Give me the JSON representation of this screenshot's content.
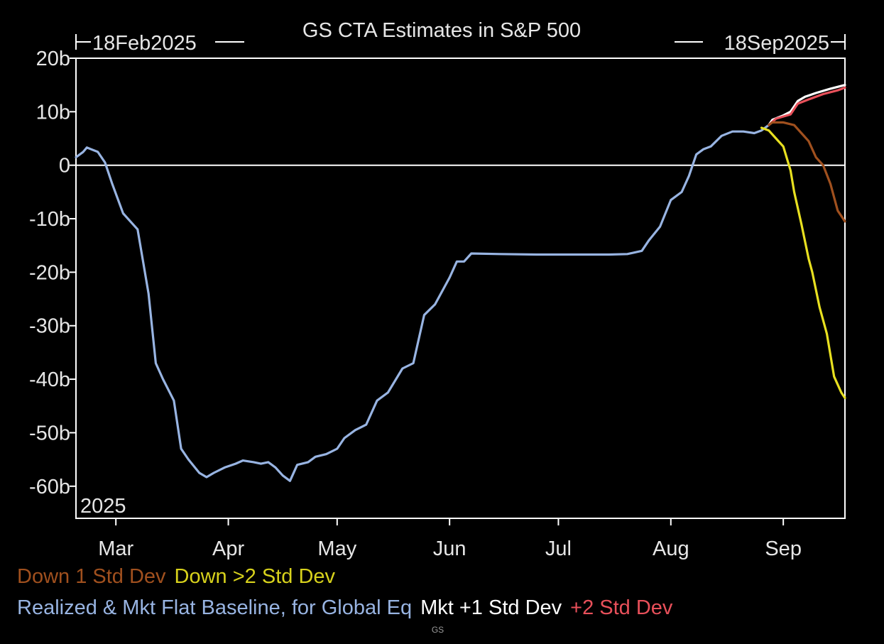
{
  "chart_data": {
    "type": "line",
    "title": "GS CTA Estimates in S&P 500",
    "start_label": "18Feb2025",
    "end_label": "18Sep2025",
    "year_label": "2025",
    "xlabel": "",
    "ylabel": "",
    "x_range": [
      "2025-02-18",
      "2025-09-18"
    ],
    "ylim": [
      -66,
      20
    ],
    "y_ticks": [
      {
        "value": 20,
        "label": "20b"
      },
      {
        "value": 10,
        "label": "10b"
      },
      {
        "value": 0,
        "label": "0"
      },
      {
        "value": -10,
        "label": "-10b"
      },
      {
        "value": -20,
        "label": "-20b"
      },
      {
        "value": -30,
        "label": "-30b"
      },
      {
        "value": -40,
        "label": "-40b"
      },
      {
        "value": -50,
        "label": "-50b"
      },
      {
        "value": -60,
        "label": "-60b"
      }
    ],
    "x_ticks": [
      {
        "date": "2025-03-01",
        "label": "Mar"
      },
      {
        "date": "2025-04-01",
        "label": "Apr"
      },
      {
        "date": "2025-05-01",
        "label": "May"
      },
      {
        "date": "2025-06-01",
        "label": "Jun"
      },
      {
        "date": "2025-07-01",
        "label": "Jul"
      },
      {
        "date": "2025-08-01",
        "label": "Aug"
      },
      {
        "date": "2025-09-01",
        "label": "Sep"
      }
    ],
    "reference_line": 0,
    "grid": false,
    "legend_position": "bottom",
    "series": [
      {
        "name": "Realized & Mkt Flat Baseline, for Global Eq",
        "color": "#98b4e2",
        "points": [
          [
            "2025-02-18",
            1.5
          ],
          [
            "2025-02-20",
            2.5
          ],
          [
            "2025-02-21",
            3.3
          ],
          [
            "2025-02-24",
            2.5
          ],
          [
            "2025-02-26",
            0.5
          ],
          [
            "2025-02-28",
            -3.5
          ],
          [
            "2025-03-03",
            -9.0
          ],
          [
            "2025-03-05",
            -10.5
          ],
          [
            "2025-03-07",
            -12.0
          ],
          [
            "2025-03-10",
            -24.0
          ],
          [
            "2025-03-12",
            -37.0
          ],
          [
            "2025-03-14",
            -40.0
          ],
          [
            "2025-03-17",
            -44.0
          ],
          [
            "2025-03-19",
            -53.0
          ],
          [
            "2025-03-21",
            -55.0
          ],
          [
            "2025-03-24",
            -57.5
          ],
          [
            "2025-03-26",
            -58.3
          ],
          [
            "2025-03-28",
            -57.5
          ],
          [
            "2025-03-31",
            -56.5
          ],
          [
            "2025-04-03",
            -55.8
          ],
          [
            "2025-04-05",
            -55.2
          ],
          [
            "2025-04-08",
            -55.5
          ],
          [
            "2025-04-10",
            -55.8
          ],
          [
            "2025-04-12",
            -55.5
          ],
          [
            "2025-04-14",
            -56.5
          ],
          [
            "2025-04-16",
            -58.0
          ],
          [
            "2025-04-18",
            -59.0
          ],
          [
            "2025-04-20",
            -56.0
          ],
          [
            "2025-04-23",
            -55.5
          ],
          [
            "2025-04-25",
            -54.5
          ],
          [
            "2025-04-28",
            -54.0
          ],
          [
            "2025-05-01",
            -53.0
          ],
          [
            "2025-05-03",
            -51.0
          ],
          [
            "2025-05-06",
            -49.5
          ],
          [
            "2025-05-09",
            -48.5
          ],
          [
            "2025-05-12",
            -44.0
          ],
          [
            "2025-05-15",
            -42.5
          ],
          [
            "2025-05-19",
            -38.0
          ],
          [
            "2025-05-22",
            -37.0
          ],
          [
            "2025-05-25",
            -28.0
          ],
          [
            "2025-05-28",
            -26.0
          ],
          [
            "2025-06-01",
            -21.0
          ],
          [
            "2025-06-03",
            -18.0
          ],
          [
            "2025-06-05",
            -18.0
          ],
          [
            "2025-06-07",
            -16.5
          ],
          [
            "2025-06-15",
            -16.6
          ],
          [
            "2025-06-25",
            -16.7
          ],
          [
            "2025-07-05",
            -16.7
          ],
          [
            "2025-07-15",
            -16.7
          ],
          [
            "2025-07-20",
            -16.6
          ],
          [
            "2025-07-24",
            -16.0
          ],
          [
            "2025-07-26",
            -14.0
          ],
          [
            "2025-07-29",
            -11.5
          ],
          [
            "2025-08-01",
            -6.5
          ],
          [
            "2025-08-04",
            -5.0
          ],
          [
            "2025-08-06",
            -2.0
          ],
          [
            "2025-08-08",
            2.0
          ],
          [
            "2025-08-10",
            3.0
          ],
          [
            "2025-08-12",
            3.5
          ],
          [
            "2025-08-15",
            5.5
          ],
          [
            "2025-08-18",
            6.3
          ],
          [
            "2025-08-21",
            6.3
          ],
          [
            "2025-08-24",
            6.0
          ],
          [
            "2025-08-26",
            6.5
          ],
          [
            "2025-08-28",
            7.5
          ]
        ]
      },
      {
        "name": "Mkt +1 Std Dev",
        "color": "#ffffff",
        "points": [
          [
            "2025-08-28",
            7.5
          ],
          [
            "2025-08-29",
            8.5
          ],
          [
            "2025-09-01",
            9.3
          ],
          [
            "2025-09-03",
            10.0
          ],
          [
            "2025-09-05",
            12.0
          ],
          [
            "2025-09-07",
            12.8
          ],
          [
            "2025-09-10",
            13.5
          ],
          [
            "2025-09-14",
            14.3
          ],
          [
            "2025-09-18",
            15.0
          ]
        ]
      },
      {
        "name": "+2 Std Dev",
        "color": "#e8505a",
        "points": [
          [
            "2025-08-28",
            7.5
          ],
          [
            "2025-08-30",
            8.7
          ],
          [
            "2025-09-03",
            9.5
          ],
          [
            "2025-09-05",
            11.5
          ],
          [
            "2025-09-08",
            12.3
          ],
          [
            "2025-09-12",
            13.3
          ],
          [
            "2025-09-16",
            14.0
          ],
          [
            "2025-09-18",
            14.5
          ]
        ]
      },
      {
        "name": "Down 1 Std Dev",
        "color": "#a0501e",
        "points": [
          [
            "2025-08-28",
            7.5
          ],
          [
            "2025-08-29",
            8.0
          ],
          [
            "2025-09-01",
            8.0
          ],
          [
            "2025-09-04",
            7.5
          ],
          [
            "2025-09-06",
            6.0
          ],
          [
            "2025-09-08",
            4.5
          ],
          [
            "2025-09-10",
            1.5
          ],
          [
            "2025-09-12",
            0.0
          ],
          [
            "2025-09-14",
            -3.5
          ],
          [
            "2025-09-16",
            -8.5
          ],
          [
            "2025-09-18",
            -10.5
          ]
        ]
      },
      {
        "name": "Down >2 Std Dev",
        "color": "#e8e020",
        "points": [
          [
            "2025-08-26",
            7.0
          ],
          [
            "2025-08-28",
            6.5
          ],
          [
            "2025-08-30",
            5.0
          ],
          [
            "2025-09-01",
            3.5
          ],
          [
            "2025-09-03",
            -1.0
          ],
          [
            "2025-09-04",
            -5.0
          ],
          [
            "2025-09-06",
            -11.0
          ],
          [
            "2025-09-08",
            -17.5
          ],
          [
            "2025-09-09",
            -20.0
          ],
          [
            "2025-09-11",
            -26.5
          ],
          [
            "2025-09-13",
            -31.5
          ],
          [
            "2025-09-15",
            -39.5
          ],
          [
            "2025-09-17",
            -42.5
          ],
          [
            "2025-09-18",
            -43.5
          ]
        ]
      }
    ]
  },
  "legend": {
    "line1": [
      {
        "label": "Down 1 Std Dev",
        "color": "#a0501e"
      },
      {
        "label": "Down >2 Std Dev",
        "color": "#d8d21c"
      }
    ],
    "line2": [
      {
        "label": "Realized & Mkt Flat Baseline, for Global Eq",
        "color": "#98b4e2"
      },
      {
        "label": "Mkt +1 Std Dev",
        "color": "#ffffff"
      },
      {
        "label": "+2 Std Dev",
        "color": "#e8505a"
      }
    ]
  },
  "source_note": "GS"
}
